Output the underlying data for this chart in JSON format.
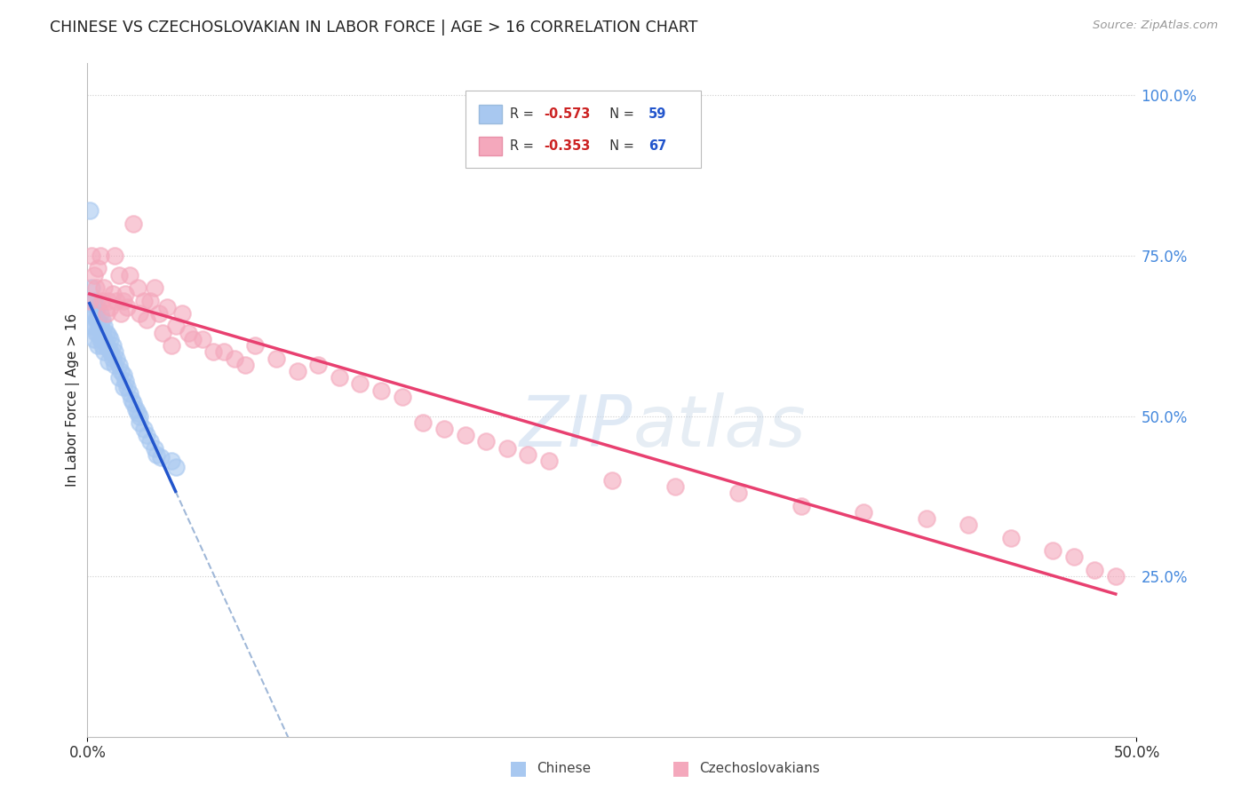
{
  "title": "CHINESE VS CZECHOSLOVAKIAN IN LABOR FORCE | AGE > 16 CORRELATION CHART",
  "source": "Source: ZipAtlas.com",
  "ylabel": "In Labor Force | Age > 16",
  "xlim": [
    0.0,
    0.5
  ],
  "ylim": [
    0.0,
    1.05
  ],
  "ytick_positions_right": [
    0.25,
    0.5,
    0.75,
    1.0
  ],
  "ytick_labels_right": [
    "25.0%",
    "50.0%",
    "75.0%",
    "100.0%"
  ],
  "gridline_y": [
    0.25,
    0.5,
    0.75,
    1.0
  ],
  "chinese_color": "#A8C8F0",
  "czech_color": "#F4A8BC",
  "chinese_line_color": "#2255CC",
  "czech_line_color": "#E84070",
  "dashed_line_color": "#A0B8D8",
  "legend_R_color": "#CC2222",
  "legend_N_color": "#2255CC",
  "chinese_R": -0.573,
  "chinese_N": 59,
  "czech_R": -0.353,
  "czech_N": 67,
  "chinese_x": [
    0.001,
    0.001,
    0.002,
    0.002,
    0.002,
    0.003,
    0.003,
    0.003,
    0.003,
    0.004,
    0.004,
    0.004,
    0.005,
    0.005,
    0.005,
    0.005,
    0.006,
    0.006,
    0.006,
    0.007,
    0.007,
    0.007,
    0.008,
    0.008,
    0.008,
    0.009,
    0.009,
    0.01,
    0.01,
    0.01,
    0.011,
    0.011,
    0.012,
    0.012,
    0.013,
    0.013,
    0.014,
    0.015,
    0.015,
    0.016,
    0.017,
    0.017,
    0.018,
    0.019,
    0.02,
    0.021,
    0.022,
    0.023,
    0.024,
    0.025,
    0.025,
    0.027,
    0.028,
    0.03,
    0.032,
    0.033,
    0.035,
    0.04,
    0.042
  ],
  "chinese_y": [
    0.82,
    0.68,
    0.7,
    0.66,
    0.64,
    0.68,
    0.66,
    0.64,
    0.62,
    0.67,
    0.65,
    0.63,
    0.67,
    0.65,
    0.63,
    0.61,
    0.66,
    0.64,
    0.62,
    0.65,
    0.63,
    0.61,
    0.64,
    0.62,
    0.6,
    0.63,
    0.61,
    0.625,
    0.605,
    0.585,
    0.62,
    0.6,
    0.61,
    0.59,
    0.6,
    0.58,
    0.59,
    0.58,
    0.56,
    0.57,
    0.565,
    0.545,
    0.555,
    0.545,
    0.535,
    0.525,
    0.52,
    0.51,
    0.505,
    0.5,
    0.49,
    0.48,
    0.47,
    0.46,
    0.45,
    0.44,
    0.435,
    0.43,
    0.42
  ],
  "czech_x": [
    0.001,
    0.002,
    0.003,
    0.004,
    0.005,
    0.006,
    0.007,
    0.008,
    0.009,
    0.01,
    0.011,
    0.012,
    0.013,
    0.014,
    0.015,
    0.016,
    0.017,
    0.018,
    0.019,
    0.02,
    0.022,
    0.024,
    0.025,
    0.027,
    0.028,
    0.03,
    0.032,
    0.034,
    0.036,
    0.038,
    0.04,
    0.042,
    0.045,
    0.048,
    0.05,
    0.055,
    0.06,
    0.065,
    0.07,
    0.075,
    0.08,
    0.09,
    0.1,
    0.11,
    0.12,
    0.13,
    0.14,
    0.15,
    0.16,
    0.17,
    0.18,
    0.19,
    0.2,
    0.21,
    0.22,
    0.25,
    0.28,
    0.31,
    0.34,
    0.37,
    0.4,
    0.42,
    0.44,
    0.46,
    0.47,
    0.48,
    0.49
  ],
  "czech_y": [
    0.68,
    0.75,
    0.72,
    0.7,
    0.73,
    0.75,
    0.68,
    0.7,
    0.66,
    0.68,
    0.67,
    0.69,
    0.75,
    0.68,
    0.72,
    0.66,
    0.68,
    0.69,
    0.67,
    0.72,
    0.8,
    0.7,
    0.66,
    0.68,
    0.65,
    0.68,
    0.7,
    0.66,
    0.63,
    0.67,
    0.61,
    0.64,
    0.66,
    0.63,
    0.62,
    0.62,
    0.6,
    0.6,
    0.59,
    0.58,
    0.61,
    0.59,
    0.57,
    0.58,
    0.56,
    0.55,
    0.54,
    0.53,
    0.49,
    0.48,
    0.47,
    0.46,
    0.45,
    0.44,
    0.43,
    0.4,
    0.39,
    0.38,
    0.36,
    0.35,
    0.34,
    0.33,
    0.31,
    0.29,
    0.28,
    0.26,
    0.25
  ]
}
